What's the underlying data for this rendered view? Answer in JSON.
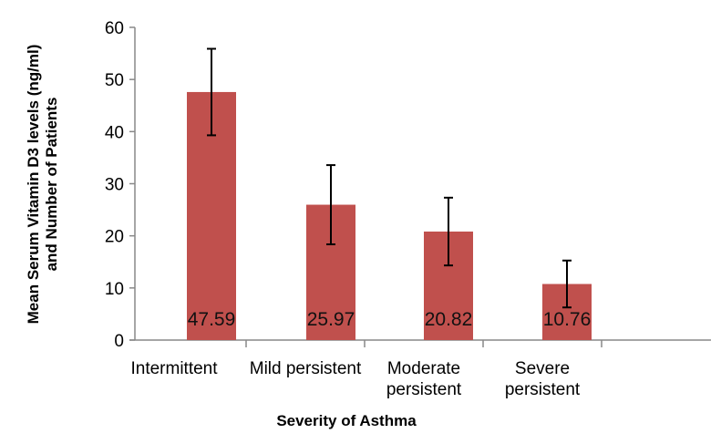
{
  "chart_data": {
    "type": "bar",
    "title": "",
    "xlabel": "Severity of Asthma",
    "ylabel_lines": [
      "Mean Serum Vitamin D3 levels (ng/ml)",
      "and Number of Patients"
    ],
    "categories": [
      [
        "Intermittent"
      ],
      [
        "Mild persistent"
      ],
      [
        "Moderate",
        "persistent"
      ],
      [
        "Severe",
        "persistent"
      ]
    ],
    "values": [
      47.59,
      25.97,
      20.82,
      10.76
    ],
    "data_labels": [
      "47.59",
      "25.97",
      "20.82",
      "10.76"
    ],
    "error_bars": [
      8.3,
      7.6,
      6.5,
      4.5
    ],
    "ylim": [
      0,
      60
    ],
    "yticks": [
      0,
      10,
      20,
      30,
      40,
      50,
      60
    ],
    "grid": false,
    "legend": "none",
    "bar_color": "#c0504d",
    "error_bar_color": "#000000"
  }
}
